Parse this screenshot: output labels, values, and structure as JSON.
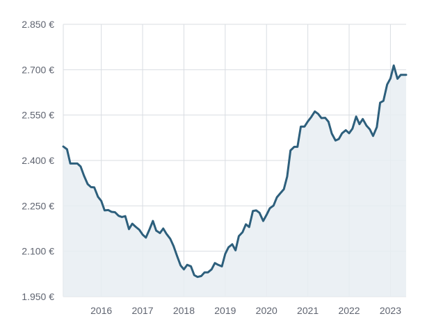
{
  "chart_data": {
    "type": "area",
    "title": "",
    "xlabel": "",
    "ylabel": "",
    "xlim": [
      2015.08,
      2023.38
    ],
    "ylim": [
      1950,
      2850
    ],
    "x_ticks": [
      {
        "value": 2016,
        "label": "2016"
      },
      {
        "value": 2017,
        "label": "2017"
      },
      {
        "value": 2018,
        "label": "2018"
      },
      {
        "value": 2019,
        "label": "2019"
      },
      {
        "value": 2020,
        "label": "2020"
      },
      {
        "value": 2021,
        "label": "2021"
      },
      {
        "value": 2022,
        "label": "2022"
      },
      {
        "value": 2023,
        "label": "2023"
      }
    ],
    "y_ticks": [
      {
        "value": 1950,
        "label": "1.950 €"
      },
      {
        "value": 2100,
        "label": "2.100 €"
      },
      {
        "value": 2250,
        "label": "2.250 €"
      },
      {
        "value": 2400,
        "label": "2.400 €"
      },
      {
        "value": 2550,
        "label": "2.550 €"
      },
      {
        "value": 2700,
        "label": "2.700 €"
      },
      {
        "value": 2850,
        "label": "2.850 €"
      }
    ],
    "grid": true,
    "legend": "none",
    "colors": {
      "line": "#2d5f7c",
      "fill": "#e8edf2",
      "grid": "#d9dde2",
      "text": "#5f6470"
    },
    "series": [
      {
        "x": [
          2015.08,
          2015.17,
          2015.25,
          2015.33,
          2015.42,
          2015.5,
          2015.58,
          2015.67,
          2015.75,
          2015.83,
          2015.92,
          2016.0,
          2016.08,
          2016.17,
          2016.25,
          2016.33,
          2016.42,
          2016.5,
          2016.58,
          2016.67,
          2016.75,
          2016.83,
          2016.92,
          2017.0,
          2017.08,
          2017.17,
          2017.25,
          2017.33,
          2017.42,
          2017.5,
          2017.58,
          2017.67,
          2017.75,
          2017.83,
          2017.92,
          2018.0,
          2018.08,
          2018.17,
          2018.25,
          2018.33,
          2018.42,
          2018.5,
          2018.58,
          2018.67,
          2018.75,
          2018.83,
          2018.92,
          2019.0,
          2019.08,
          2019.17,
          2019.25,
          2019.33,
          2019.42,
          2019.5,
          2019.58,
          2019.67,
          2019.75,
          2019.83,
          2019.92,
          2020.0,
          2020.08,
          2020.17,
          2020.25,
          2020.33,
          2020.42,
          2020.5,
          2020.58,
          2020.67,
          2020.75,
          2020.83,
          2020.92,
          2021.0,
          2021.08,
          2021.17,
          2021.25,
          2021.33,
          2021.42,
          2021.5,
          2021.58,
          2021.67,
          2021.75,
          2021.83,
          2021.92,
          2022.0,
          2022.08,
          2022.17,
          2022.25,
          2022.33,
          2022.42,
          2022.5,
          2022.58,
          2022.67,
          2022.75,
          2022.83,
          2022.92,
          2023.0,
          2023.08,
          2023.17,
          2023.25,
          2023.33,
          2023.38
        ],
        "values": [
          2446,
          2437,
          2390,
          2390,
          2390,
          2380,
          2350,
          2322,
          2312,
          2311,
          2280,
          2266,
          2235,
          2236,
          2230,
          2229,
          2217,
          2213,
          2216,
          2173,
          2191,
          2181,
          2171,
          2155,
          2145,
          2173,
          2200,
          2168,
          2160,
          2175,
          2157,
          2141,
          2117,
          2086,
          2053,
          2040,
          2055,
          2050,
          2021,
          2015,
          2018,
          2030,
          2030,
          2040,
          2061,
          2055,
          2050,
          2091,
          2113,
          2123,
          2103,
          2150,
          2163,
          2189,
          2180,
          2233,
          2235,
          2227,
          2200,
          2220,
          2242,
          2251,
          2278,
          2291,
          2305,
          2347,
          2433,
          2445,
          2445,
          2512,
          2512,
          2529,
          2543,
          2562,
          2554,
          2540,
          2541,
          2528,
          2489,
          2466,
          2471,
          2490,
          2500,
          2490,
          2505,
          2545,
          2520,
          2537,
          2515,
          2503,
          2481,
          2510,
          2591,
          2597,
          2651,
          2671,
          2714,
          2670,
          2683,
          2683,
          2683
        ]
      }
    ]
  }
}
